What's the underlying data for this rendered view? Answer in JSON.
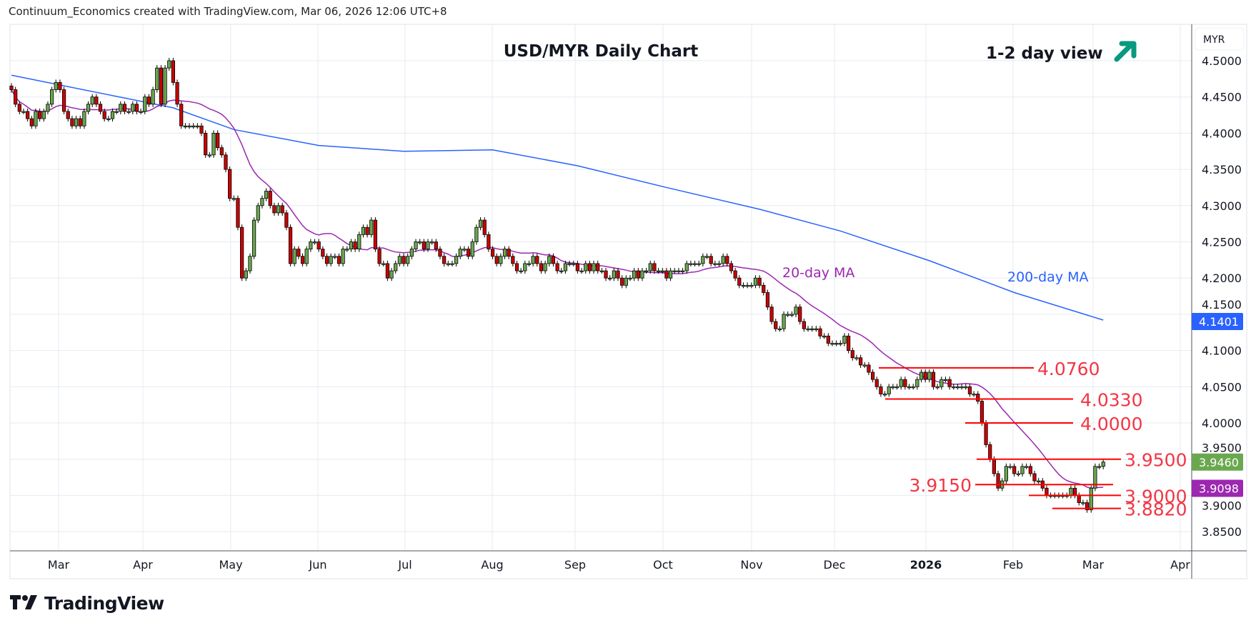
{
  "header": {
    "attribution": "Continuum_Economics created with TradingView.com, Mar 06, 2026 12:06 UTC+8"
  },
  "footer": {
    "brand": "TradingView"
  },
  "chart_data": {
    "type": "candlestick",
    "title": "USD/MYR Daily Chart",
    "view_label": "1-2 day view",
    "view_direction": "up-arrow",
    "currency": "MYR",
    "ylim": [
      3.82,
      4.545
    ],
    "y_ticks": [
      "4.5000",
      "4.4500",
      "4.4000",
      "4.3500",
      "4.3000",
      "4.2500",
      "4.2000",
      "4.1500",
      "4.1000",
      "4.0500",
      "4.0000",
      "3.9500",
      "3.9000",
      "3.8500"
    ],
    "x_ticks": [
      "Mar",
      "Apr",
      "May",
      "Jun",
      "Jul",
      "Aug",
      "Sep",
      "Oct",
      "Nov",
      "Dec",
      "2026",
      "Feb",
      "Mar",
      "Apr"
    ],
    "closes": [
      4.46,
      4.44,
      4.43,
      4.43,
      4.42,
      4.41,
      4.43,
      4.42,
      4.43,
      4.44,
      4.46,
      4.47,
      4.46,
      4.43,
      4.42,
      4.41,
      4.42,
      4.41,
      4.43,
      4.44,
      4.45,
      4.44,
      4.43,
      4.42,
      4.42,
      4.43,
      4.43,
      4.44,
      4.43,
      4.43,
      4.44,
      4.43,
      4.43,
      4.45,
      4.44,
      4.46,
      4.49,
      4.44,
      4.49,
      4.5,
      4.47,
      4.44,
      4.41,
      4.41,
      4.41,
      4.41,
      4.41,
      4.4,
      4.37,
      4.37,
      4.4,
      4.38,
      4.37,
      4.35,
      4.31,
      4.31,
      4.27,
      4.2,
      4.21,
      4.23,
      4.28,
      4.3,
      4.31,
      4.32,
      4.3,
      4.29,
      4.3,
      4.29,
      4.27,
      4.22,
      4.24,
      4.23,
      4.22,
      4.24,
      4.25,
      4.25,
      4.24,
      4.23,
      4.22,
      4.23,
      4.23,
      4.22,
      4.24,
      4.24,
      4.25,
      4.24,
      4.26,
      4.27,
      4.26,
      4.28,
      4.24,
      4.22,
      4.22,
      4.2,
      4.21,
      4.22,
      4.23,
      4.22,
      4.23,
      4.24,
      4.25,
      4.25,
      4.24,
      4.25,
      4.25,
      4.24,
      4.23,
      4.22,
      4.22,
      4.22,
      4.23,
      4.24,
      4.24,
      4.23,
      4.25,
      4.27,
      4.28,
      4.26,
      4.24,
      4.23,
      4.22,
      4.23,
      4.24,
      4.23,
      4.22,
      4.21,
      4.21,
      4.22,
      4.22,
      4.23,
      4.22,
      4.21,
      4.22,
      4.23,
      4.22,
      4.21,
      4.21,
      4.22,
      4.22,
      4.22,
      4.21,
      4.21,
      4.22,
      4.21,
      4.22,
      4.21,
      4.21,
      4.2,
      4.2,
      4.21,
      4.2,
      4.19,
      4.2,
      4.2,
      4.21,
      4.2,
      4.21,
      4.21,
      4.22,
      4.21,
      4.21,
      4.21,
      4.2,
      4.21,
      4.21,
      4.21,
      4.21,
      4.22,
      4.22,
      4.22,
      4.22,
      4.23,
      4.23,
      4.22,
      4.22,
      4.22,
      4.23,
      4.22,
      4.21,
      4.2,
      4.19,
      4.19,
      4.19,
      4.19,
      4.2,
      4.19,
      4.18,
      4.16,
      4.14,
      4.13,
      4.13,
      4.15,
      4.15,
      4.15,
      4.16,
      4.14,
      4.13,
      4.13,
      4.13,
      4.13,
      4.12,
      4.12,
      4.11,
      4.11,
      4.11,
      4.11,
      4.12,
      4.1,
      4.09,
      4.09,
      4.08,
      4.08,
      4.07,
      4.06,
      4.05,
      4.04,
      4.04,
      4.05,
      4.05,
      4.05,
      4.06,
      4.05,
      4.05,
      4.05,
      4.06,
      4.07,
      4.06,
      4.07,
      4.05,
      4.05,
      4.06,
      4.06,
      4.05,
      4.05,
      4.05,
      4.05,
      4.05,
      4.04,
      4.04,
      4.03,
      4.0,
      3.97,
      3.95,
      3.93,
      3.91,
      3.92,
      3.94,
      3.94,
      3.93,
      3.93,
      3.94,
      3.94,
      3.93,
      3.92,
      3.92,
      3.91,
      3.9,
      3.9,
      3.9,
      3.9,
      3.9,
      3.9,
      3.91,
      3.9,
      3.89,
      3.89,
      3.88,
      3.91,
      3.94,
      3.94,
      3.946
    ],
    "ma200_points": [
      [
        0,
        4.48
      ],
      [
        40,
        4.435
      ],
      [
        55,
        4.405
      ],
      [
        76,
        4.383
      ],
      [
        97,
        4.375
      ],
      [
        119,
        4.377
      ],
      [
        140,
        4.355
      ],
      [
        162,
        4.325
      ],
      [
        185,
        4.295
      ],
      [
        205,
        4.265
      ],
      [
        227,
        4.224
      ],
      [
        248,
        4.18
      ],
      [
        270,
        4.142
      ]
    ],
    "series": [
      {
        "name": "20-day MA",
        "label": "20-day MA",
        "color": "#9c27b0",
        "last_value": "3.9098"
      },
      {
        "name": "200-day MA",
        "label": "200-day MA",
        "color": "#2962ff",
        "last_value": "4.1401"
      }
    ],
    "last_price": "3.9460",
    "levels": [
      {
        "value": 4.076,
        "label": "4.0760"
      },
      {
        "value": 4.033,
        "label": "4.0330"
      },
      {
        "value": 4.0,
        "label": "4.0000"
      },
      {
        "value": 3.95,
        "label": "3.9500"
      },
      {
        "value": 3.915,
        "label": "3.9150"
      },
      {
        "value": 3.9,
        "label": "3.9000"
      },
      {
        "value": 3.882,
        "label": "3.8820"
      }
    ],
    "colors": {
      "up": "#6aa84f",
      "down": "#cc0000",
      "level": "#f23645",
      "arrow": "#089981",
      "last_price_bg": "#6aa84f",
      "ma20": "#9c27b0",
      "ma200": "#2962ff"
    }
  }
}
